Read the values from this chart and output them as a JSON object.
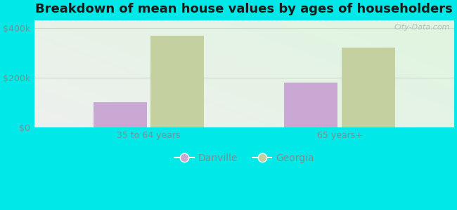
{
  "title": "Breakdown of mean house values by ages of householders",
  "categories": [
    "35 to 64 years",
    "65 years+"
  ],
  "danville_values": [
    100000,
    180000
  ],
  "georgia_values": [
    370000,
    320000
  ],
  "danville_color": "#c9a8d4",
  "georgia_color": "#c5d0a0",
  "background_color": "#00e8e8",
  "plot_bg_color": "#e8f5e2",
  "yticks": [
    0,
    200000,
    400000
  ],
  "ytick_labels": [
    "$0",
    "$200k",
    "$400k"
  ],
  "ylim": [
    0,
    430000
  ],
  "legend_danville": "Danville",
  "legend_georgia": "Georgia",
  "watermark": "City-Data.com",
  "bar_width": 0.28,
  "title_fontsize": 13,
  "tick_fontsize": 9,
  "legend_fontsize": 10,
  "tick_color": "#7a9090",
  "title_color": "#1a1a1a",
  "grid_color": "#c8dcc8"
}
